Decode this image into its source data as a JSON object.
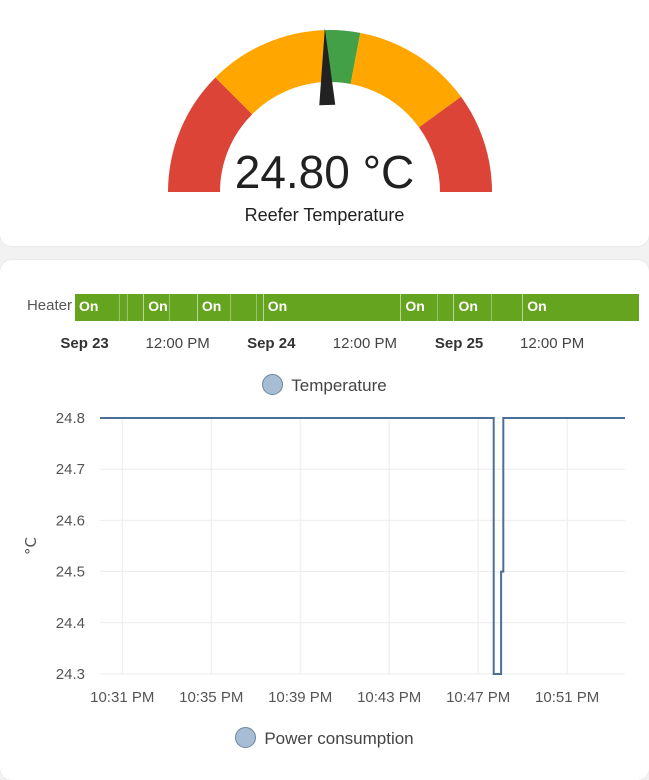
{
  "gauge": {
    "value": "24.80 °C",
    "name": "Reefer Temperature",
    "level_fraction": 0.49,
    "segment_colors": [
      "#db4437",
      "#ffa600",
      "#43a047",
      "#ffa600",
      "#db4437"
    ]
  },
  "timeline": {
    "label": "Heater",
    "state_color": "#65a41f",
    "segments": [
      {
        "state": "On",
        "start": 0.0
      },
      {
        "state": "",
        "start": 0.078
      },
      {
        "state": "",
        "start": 0.092
      },
      {
        "state": "On",
        "start": 0.121
      },
      {
        "state": "",
        "start": 0.166
      },
      {
        "state": "On",
        "start": 0.216
      },
      {
        "state": "",
        "start": 0.275
      },
      {
        "state": "",
        "start": 0.321
      },
      {
        "state": "On",
        "start": 0.333
      },
      {
        "state": "On",
        "start": 0.577
      },
      {
        "state": "",
        "start": 0.641
      },
      {
        "state": "On",
        "start": 0.671
      },
      {
        "state": "",
        "start": 0.737
      },
      {
        "state": "On",
        "start": 0.793
      }
    ],
    "ticks": [
      {
        "label": "Sep 23",
        "pos": 0.017,
        "bold": true
      },
      {
        "label": "12:00 PM",
        "pos": 0.182,
        "bold": false
      },
      {
        "label": "Sep 24",
        "pos": 0.348,
        "bold": true
      },
      {
        "label": "12:00 PM",
        "pos": 0.514,
        "bold": false
      },
      {
        "label": "Sep 25",
        "pos": 0.681,
        "bold": true
      },
      {
        "label": "12:00 PM",
        "pos": 0.846,
        "bold": false
      }
    ]
  },
  "legends": {
    "temperature": "Temperature",
    "power": "Power consumption"
  },
  "chart_data": {
    "type": "line",
    "ylabel": "°C",
    "ylim": [
      24.3,
      24.8
    ],
    "yticks": [
      24.8,
      24.7,
      24.6,
      24.5,
      24.4,
      24.3
    ],
    "ytick_labels": [
      "24.8",
      "24.7",
      "24.6",
      "24.5",
      "24.4",
      "24.3"
    ],
    "x_minutes_range": [
      0,
      23.6
    ],
    "xticks": [
      {
        "label": "10:31 PM",
        "m": 1
      },
      {
        "label": "10:35 PM",
        "m": 5
      },
      {
        "label": "10:39 PM",
        "m": 9
      },
      {
        "label": "10:43 PM",
        "m": 13
      },
      {
        "label": "10:47 PM",
        "m": 17
      },
      {
        "label": "10:51 PM",
        "m": 21
      }
    ],
    "series": [
      {
        "color": "#4c6f98",
        "points": [
          [
            0,
            24.8
          ],
          [
            17.7,
            24.8
          ],
          [
            17.7,
            24.3
          ],
          [
            18.03,
            24.3
          ],
          [
            18.03,
            24.5
          ],
          [
            18.13,
            24.5
          ],
          [
            18.13,
            24.8
          ],
          [
            23.6,
            24.8
          ]
        ]
      }
    ]
  }
}
